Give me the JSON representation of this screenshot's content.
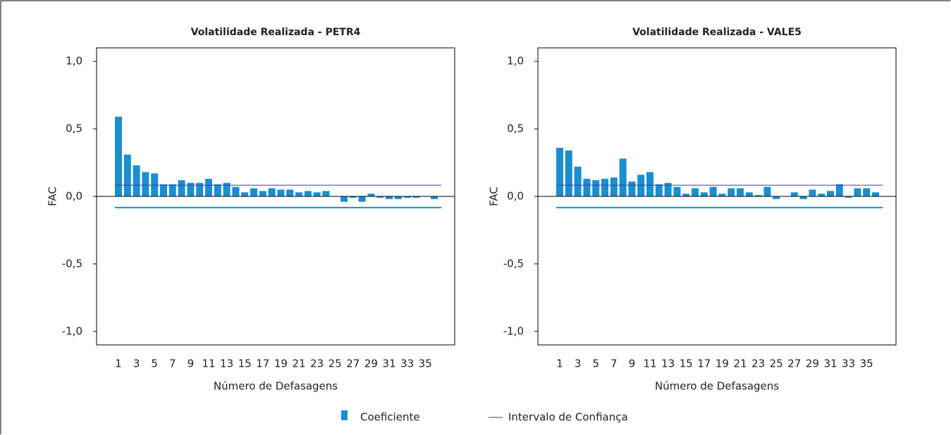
{
  "chart_data": [
    {
      "type": "bar",
      "title": "Volatilidade Realizada - PETR4",
      "xlabel": "Número de Defasagens",
      "ylabel": "FAC",
      "categories": [
        1,
        null,
        3,
        null,
        5,
        null,
        7,
        null,
        9,
        null,
        11,
        null,
        13,
        null,
        15,
        null,
        17,
        null,
        19,
        null,
        21,
        null,
        23,
        null,
        25,
        null,
        27,
        null,
        29,
        null,
        31,
        null,
        33,
        null,
        35,
        null
      ],
      "series": [
        {
          "name": "Coeficiente",
          "color": "#1a8fd0",
          "values": [
            0.59,
            0.31,
            0.23,
            0.18,
            0.17,
            0.09,
            0.09,
            0.12,
            0.1,
            0.1,
            0.13,
            0.09,
            0.1,
            0.07,
            0.03,
            0.06,
            0.04,
            0.06,
            0.05,
            0.05,
            0.03,
            0.04,
            0.03,
            0.04,
            0.0,
            -0.04,
            -0.01,
            -0.04,
            0.02,
            -0.01,
            -0.02,
            -0.02,
            -0.01,
            -0.01,
            0.0,
            -0.02
          ]
        }
      ],
      "confidence_interval": {
        "name": "Intervalo de Confiança",
        "upper": 0.083,
        "lower": -0.083,
        "upper_color": "#3a3a9e",
        "lower_color": "#1a8fd0"
      },
      "ylim": [
        -1.1,
        1.1
      ],
      "yticks": [
        {
          "value": -1.0,
          "label": "-1,0"
        },
        {
          "value": -0.5,
          "label": "-0,5"
        },
        {
          "value": 0,
          "label": "0,0"
        },
        {
          "value": 0.5,
          "label": "0,5"
        },
        {
          "value": 1.0,
          "label": "1,0"
        }
      ]
    },
    {
      "type": "bar",
      "title": "Volatilidade Realizada - VALE5",
      "xlabel": "Número de Defasagens",
      "ylabel": "FAC",
      "categories": [
        1,
        null,
        3,
        null,
        5,
        null,
        7,
        null,
        9,
        null,
        11,
        null,
        13,
        null,
        15,
        null,
        17,
        null,
        19,
        null,
        21,
        null,
        23,
        null,
        25,
        null,
        27,
        null,
        29,
        null,
        31,
        null,
        33,
        null,
        35,
        null
      ],
      "series": [
        {
          "color": "#1a8fd0",
          "values": [
            0.36,
            0.34,
            0.22,
            0.13,
            0.12,
            0.13,
            0.14,
            0.28,
            0.11,
            0.16,
            0.18,
            0.09,
            0.1,
            0.07,
            0.02,
            0.06,
            0.03,
            0.07,
            0.02,
            0.06,
            0.06,
            0.03,
            0.01,
            0.07,
            -0.02,
            0.0,
            0.03,
            -0.02,
            0.05,
            0.02,
            0.04,
            0.09,
            -0.01,
            0.06,
            0.06,
            0.03
          ]
        }
      ],
      "confidence_interval": {
        "upper": 0.083,
        "lower": -0.083,
        "upper_color": "#3a3a9e",
        "lower_color": "#1a8fd0"
      },
      "ylim": [
        -1.1,
        1.1
      ],
      "yticks": [
        {
          "value": -1.0,
          "label": "-1,0"
        },
        {
          "value": -0.5,
          "label": "-0,5"
        },
        {
          "value": 0,
          "label": "0,0"
        },
        {
          "value": 0.5,
          "label": "0,5"
        },
        {
          "value": 1.0,
          "label": "1,0"
        }
      ]
    }
  ]
}
